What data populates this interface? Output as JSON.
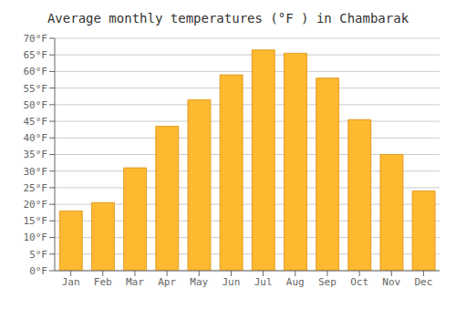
{
  "chart_data": {
    "type": "bar",
    "title": "Average monthly temperatures (°F ) in Chambarak",
    "categories": [
      "Jan",
      "Feb",
      "Mar",
      "Apr",
      "May",
      "Jun",
      "Jul",
      "Aug",
      "Sep",
      "Oct",
      "Nov",
      "Dec"
    ],
    "values": [
      18,
      20.5,
      31,
      43.5,
      51.5,
      59,
      66.5,
      65.5,
      58,
      45.5,
      35,
      24
    ],
    "color": "#FDB930",
    "ylim": [
      0,
      70
    ],
    "yticks": [
      {
        "value": 0,
        "label": "0°F"
      },
      {
        "value": 5,
        "label": "5°F"
      },
      {
        "value": 10,
        "label": "10°F"
      },
      {
        "value": 15,
        "label": "15°F"
      },
      {
        "value": 20,
        "label": "20°F"
      },
      {
        "value": 25,
        "label": "25°F"
      },
      {
        "value": 30,
        "label": "30°F"
      },
      {
        "value": 35,
        "label": "35°F"
      },
      {
        "value": 40,
        "label": "40°F"
      },
      {
        "value": 45,
        "label": "45°F"
      },
      {
        "value": 50,
        "label": "50°F"
      },
      {
        "value": 55,
        "label": "55°F"
      },
      {
        "value": 60,
        "label": "60°F"
      },
      {
        "value": 65,
        "label": "65°F"
      },
      {
        "value": 70,
        "label": "70°F"
      }
    ],
    "grid": true
  }
}
